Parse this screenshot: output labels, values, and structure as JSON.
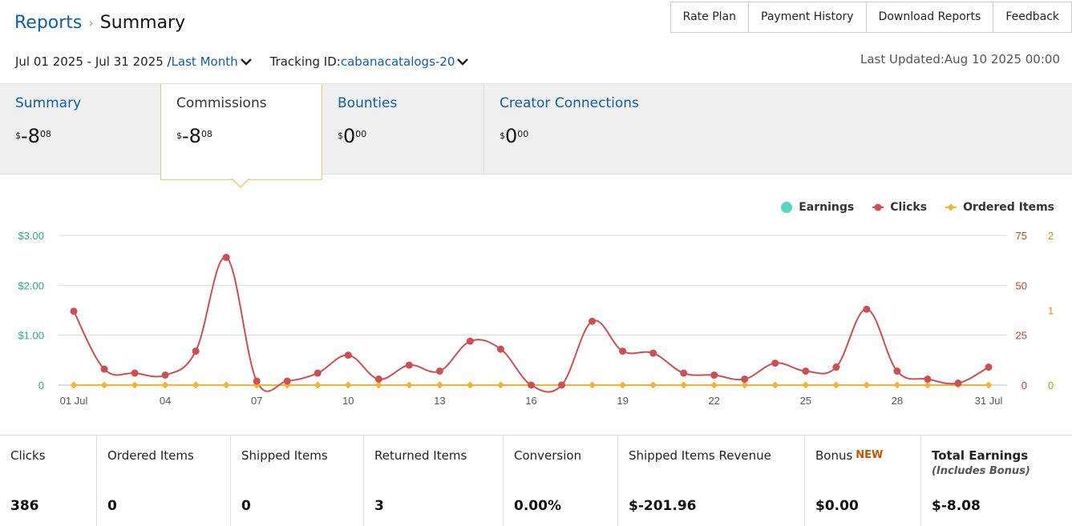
{
  "breadcrumb": {
    "parent": "Reports",
    "separator": "›",
    "current": "Summary"
  },
  "header_buttons": [
    "Rate Plan",
    "Payment History",
    "Download Reports",
    "Feedback"
  ],
  "filters": {
    "date_range": "Jul 01 2025 - Jul 31 2025 /",
    "period": "Last Month",
    "tracking_label": "Tracking ID:",
    "tracking_id": "cabanacatalogs-20"
  },
  "last_updated": "Last Updated:Aug 10 2025 00:00",
  "tabs": [
    {
      "label": "Summary",
      "currency": "$",
      "main": "-8",
      "cents": "08"
    },
    {
      "label": "Commissions",
      "currency": "$",
      "main": "-8",
      "cents": "08"
    },
    {
      "label": "Bounties",
      "currency": "$",
      "main": "0",
      "cents": "00"
    },
    {
      "label": "Creator Connections",
      "currency": "$",
      "main": "0",
      "cents": "00"
    }
  ],
  "legend": {
    "earnings": "Earnings",
    "clicks": "Clicks",
    "ordered": "Ordered Items"
  },
  "colors": {
    "earnings": "#55d6c2",
    "clicks": "#cd4f52",
    "ordered": "#f0b535",
    "earnings_axis": "#2ca58d",
    "clicks_axis": "#b04a2b",
    "ordered_axis": "#c9980a",
    "link": "#0f5ea8"
  },
  "chart_data": {
    "type": "line",
    "x": [
      "01 Jul",
      "02",
      "03",
      "04",
      "05",
      "06",
      "07",
      "08",
      "09",
      "10",
      "11",
      "12",
      "13",
      "14",
      "15",
      "16",
      "17",
      "18",
      "19",
      "20",
      "21",
      "22",
      "23",
      "24",
      "25",
      "26",
      "27",
      "28",
      "29",
      "30",
      "31 Jul"
    ],
    "x_tick_labels": [
      "01 Jul",
      "04",
      "07",
      "10",
      "13",
      "16",
      "19",
      "22",
      "25",
      "28",
      "31 Jul"
    ],
    "y_left_ticks": [
      "0",
      "$1.00",
      "$2.00",
      "$3.00"
    ],
    "y_clicks_ticks": [
      "0",
      "25",
      "50",
      "75"
    ],
    "y_ordered_ticks": [
      "0",
      "1",
      "2"
    ],
    "series": [
      {
        "name": "Clicks",
        "axis": "clicks",
        "ylim": [
          0,
          75
        ],
        "values": [
          37,
          8,
          6,
          5,
          17,
          64,
          2,
          2,
          6,
          15,
          3,
          10,
          7,
          22,
          18,
          0,
          0,
          32,
          17,
          16,
          6,
          5,
          3,
          11,
          7,
          9,
          38,
          7,
          3,
          1,
          9
        ]
      },
      {
        "name": "Ordered Items",
        "axis": "ordered",
        "ylim": [
          0,
          2
        ],
        "values": [
          0,
          0,
          0,
          0,
          0,
          0,
          0,
          0,
          0,
          0,
          0,
          0,
          0,
          0,
          0,
          0,
          0,
          0,
          0,
          0,
          0,
          0,
          0,
          0,
          0,
          0,
          0,
          0,
          0,
          0,
          0
        ]
      },
      {
        "name": "Earnings",
        "axis": "earnings",
        "ylim": [
          0,
          3
        ],
        "values": [
          0,
          0,
          0,
          0,
          0,
          0,
          0,
          0,
          0,
          0,
          0,
          0,
          0,
          0,
          0,
          0,
          0,
          0,
          0,
          0,
          0,
          0,
          0,
          0,
          0,
          0,
          0,
          0,
          0,
          0,
          0
        ]
      }
    ],
    "grid": true,
    "legend_position": "top-right"
  },
  "stats": [
    {
      "title": "Clicks",
      "value": "386"
    },
    {
      "title": "Ordered Items",
      "value": "0"
    },
    {
      "title": "Shipped Items",
      "value": "0"
    },
    {
      "title": "Returned Items",
      "value": "3"
    },
    {
      "title": "Conversion",
      "value": "0.00%"
    },
    {
      "title": "Shipped Items Revenue",
      "value": "$-201.96"
    },
    {
      "title": "Bonus",
      "badge": "NEW",
      "value": "$0.00"
    },
    {
      "title": "Total Earnings",
      "subtitle": "(Includes Bonus)",
      "value": "$-8.08"
    }
  ]
}
